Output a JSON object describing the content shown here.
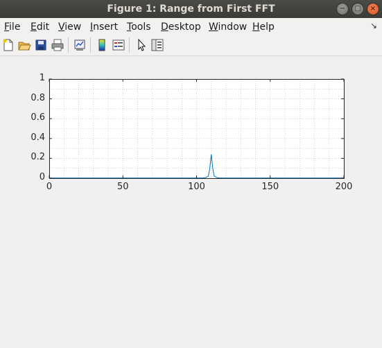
{
  "window": {
    "title": "Figure 1: Range from First FFT",
    "buttons": [
      "minimize",
      "maximize",
      "close"
    ]
  },
  "menu": {
    "items": [
      {
        "first": "F",
        "rest": "ile"
      },
      {
        "first": "E",
        "rest": "dit"
      },
      {
        "first": "V",
        "rest": "iew"
      },
      {
        "first": "I",
        "rest": "nsert"
      },
      {
        "first": "T",
        "rest": "ools"
      },
      {
        "first": "D",
        "rest": "esktop"
      },
      {
        "first": "W",
        "rest": "indow"
      },
      {
        "first": "H",
        "rest": "elp"
      }
    ],
    "overflow_icon": "arrow-corner-icon"
  },
  "toolbar": {
    "icons": [
      "new-figure-icon",
      "open-file-icon",
      "save-icon",
      "print-icon",
      "link-plot-icon",
      "insert-colorbar-icon",
      "insert-legend-icon",
      "edit-plot-icon",
      "property-inspector-icon"
    ]
  },
  "colors": {
    "line": "#0072bd",
    "axes_bg": "#ffffff",
    "grid": "#b0b0b0",
    "figure_bg": "#f0f0f0"
  },
  "chart_data": {
    "type": "line",
    "title": "",
    "xlabel": "",
    "ylabel": "",
    "xlim": [
      0,
      200
    ],
    "ylim": [
      0,
      1
    ],
    "xticks": [
      "0",
      "50",
      "100",
      "150",
      "200"
    ],
    "yticks": [
      "0",
      "0.2",
      "0.4",
      "0.6",
      "0.8",
      "1"
    ],
    "grid": "on",
    "minor_grid": "on",
    "series": [
      {
        "x": [
          0,
          104,
          106,
          108,
          109,
          110,
          111,
          112,
          114,
          116,
          200
        ],
        "y": [
          0.002,
          0.002,
          0.005,
          0.02,
          0.1,
          0.24,
          0.1,
          0.02,
          0.004,
          0.002,
          0.002
        ]
      }
    ]
  }
}
